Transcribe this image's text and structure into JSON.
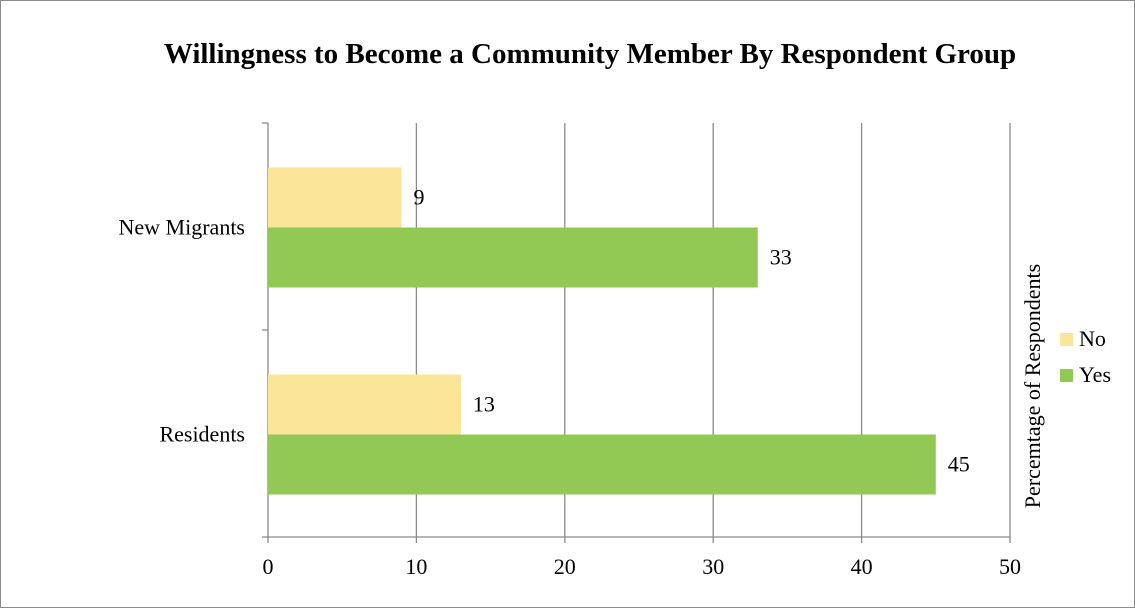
{
  "chart_data": {
    "type": "bar",
    "orientation": "horizontal",
    "title": "Willingness to Become a Community Member By Respondent Group",
    "categories": [
      "New Migrants",
      "Residents"
    ],
    "series": [
      {
        "name": "No",
        "color": "#fae598",
        "values": [
          9,
          13
        ]
      },
      {
        "name": "Yes",
        "color": "#92c854",
        "values": [
          33,
          45
        ]
      }
    ],
    "axis_label": "Percemtage of Respondents",
    "xlim": [
      0,
      50
    ],
    "x_ticks": [
      0,
      10,
      20,
      30,
      40,
      50
    ],
    "grid": "vertical",
    "legend_position": "right"
  }
}
